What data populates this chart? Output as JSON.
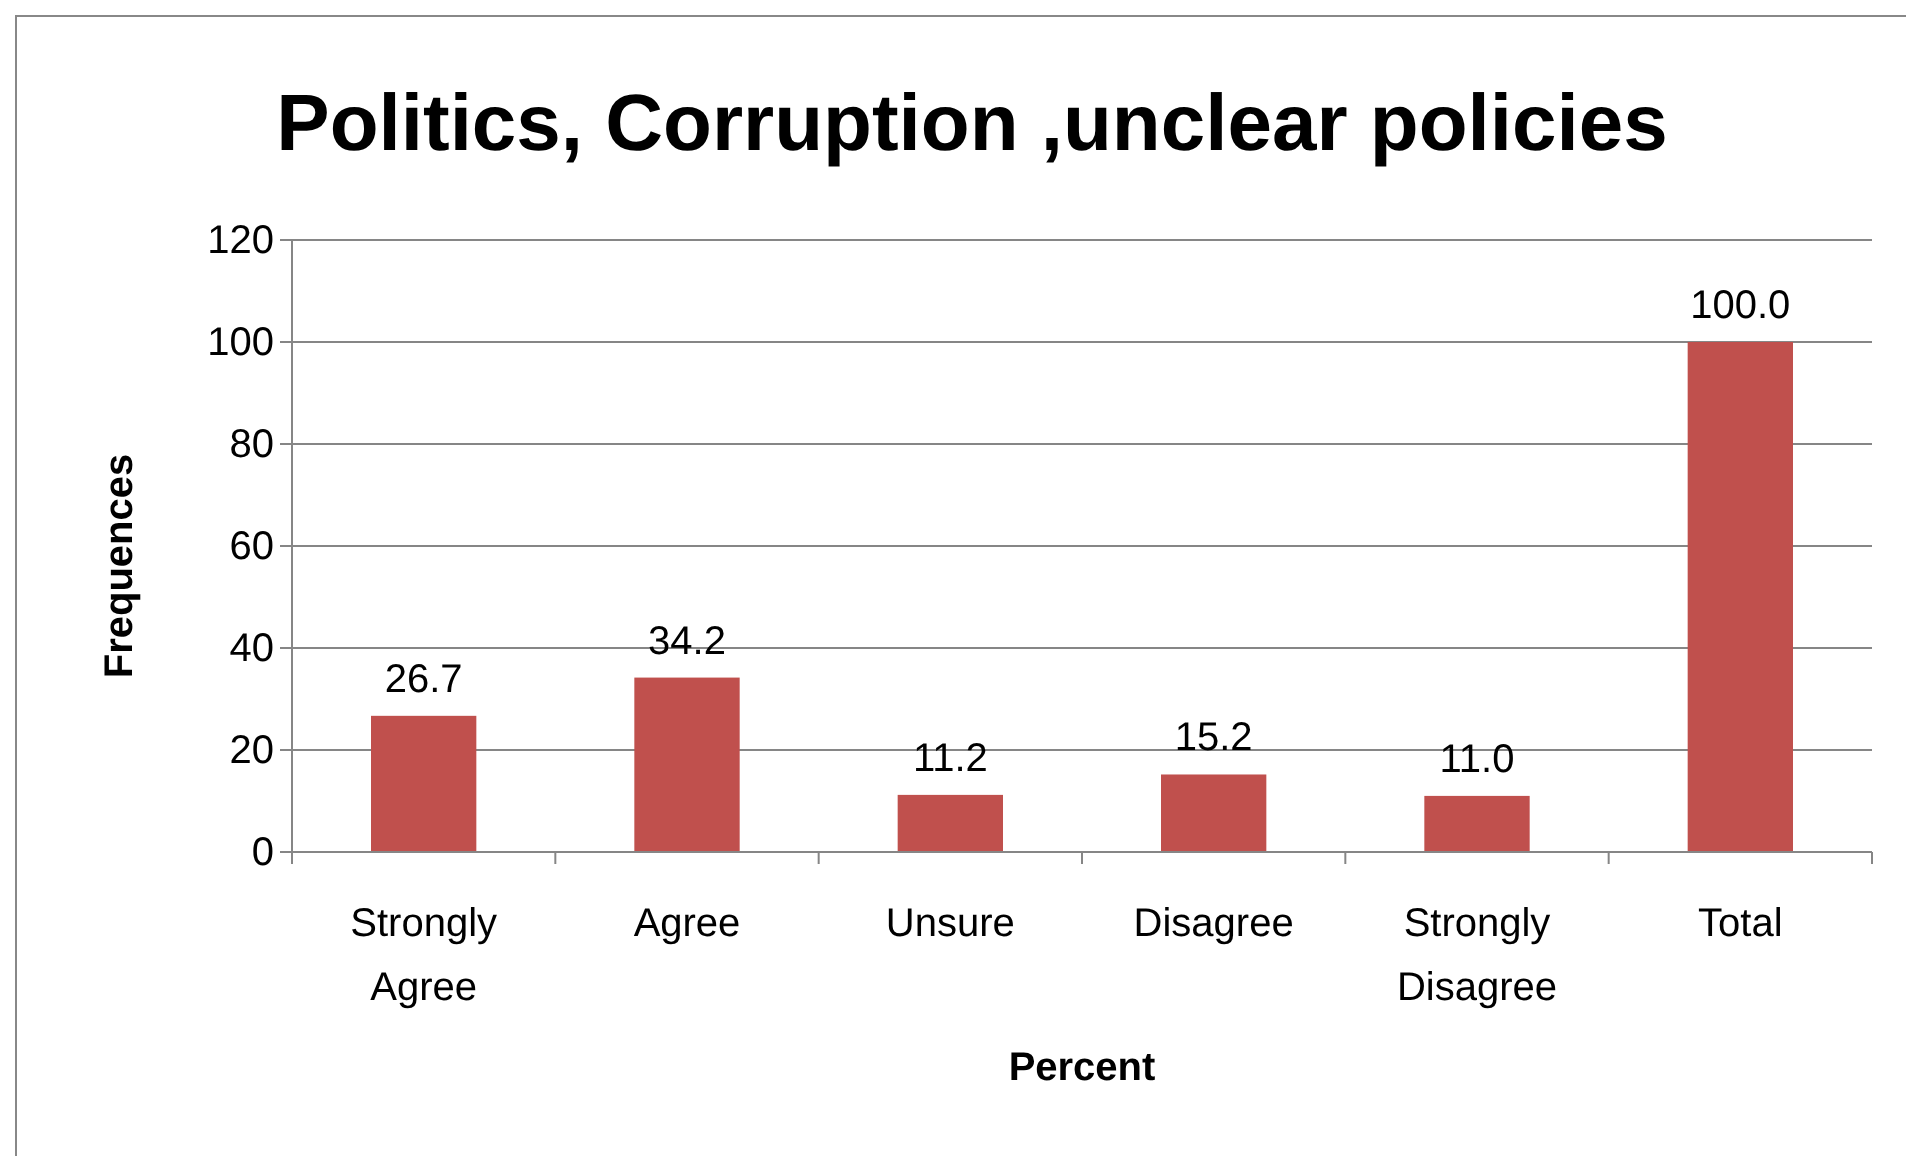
{
  "chart_data": {
    "type": "bar",
    "title": "Politics, Corruption ,unclear policies",
    "xlabel": "Percent",
    "ylabel": "Frequences",
    "categories": [
      "Strongly Agree",
      "Agree",
      "Unsure",
      "Disagree",
      "Strongly Disagree",
      "Total"
    ],
    "values": [
      26.7,
      34.2,
      11.2,
      15.2,
      11.0,
      100.0
    ],
    "value_labels": [
      "26.7",
      "34.2",
      "11.2",
      "15.2",
      "11.0",
      "100.0"
    ],
    "color": "#c0504d",
    "ylim": [
      0,
      120
    ],
    "yticks": [
      0,
      20,
      40,
      60,
      80,
      100,
      120
    ],
    "grid": "y"
  }
}
